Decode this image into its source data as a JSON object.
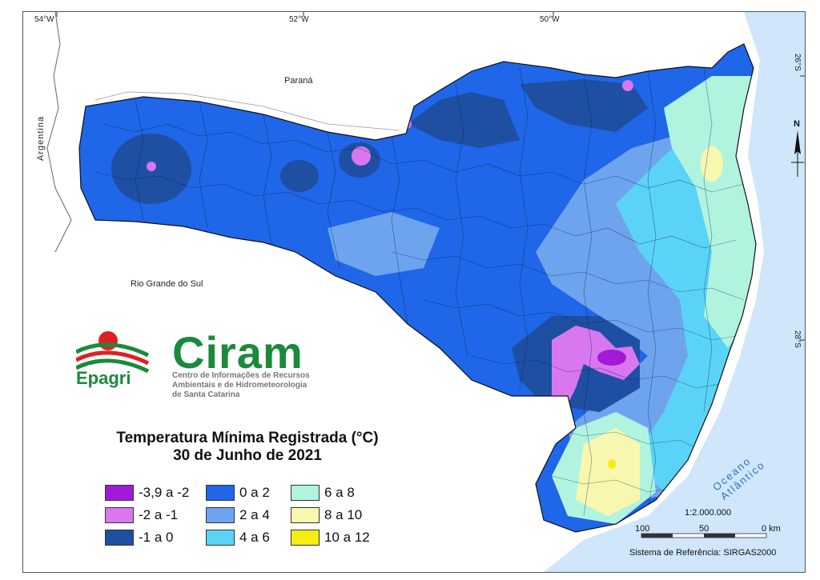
{
  "map": {
    "graticule": {
      "top_ticks": [
        "54°W",
        "52°W",
        "50°W"
      ],
      "right_ticks": [
        "26°S",
        "28°S"
      ]
    },
    "places": {
      "parana": "Paraná",
      "argentina": "Argentina",
      "rio_grande_do_sul": "Rio Grande do Sul",
      "ocean": "Oceano Atlântico"
    },
    "logo": {
      "brand": "Ciram",
      "org": "Epagri",
      "subtitle_lines": [
        "Centro de Informações de Recursos",
        "Ambientais e de Hidrometeorologia",
        "de Santa Catarina"
      ]
    },
    "title": "Temperatura Mínima Registrada (°C)",
    "subtitle": "30 de Junho de 2021",
    "legend": [
      {
        "label": "-3,9 a -2",
        "color": "#a21ad8"
      },
      {
        "label": "-2 a -1",
        "color": "#d877ee"
      },
      {
        "label": "-1 a 0",
        "color": "#1e4fa3"
      },
      {
        "label": "0 a 2",
        "color": "#1f66e8"
      },
      {
        "label": "2 a 4",
        "color": "#6ea4ee"
      },
      {
        "label": "4 a 6",
        "color": "#5bd3f7"
      },
      {
        "label": "6 a 8",
        "color": "#b0f4e0"
      },
      {
        "label": "8 a 10",
        "color": "#f8f7b0"
      },
      {
        "label": "10 a 12",
        "color": "#f6ed10"
      }
    ],
    "scale": {
      "ratio": "1:2.000.000",
      "labels": [
        "100",
        "50",
        "0 km"
      ]
    },
    "crs": "Sistema de Referência: SIRGAS2000",
    "north_label": "N",
    "ocean_color": "#cfe6fb"
  }
}
